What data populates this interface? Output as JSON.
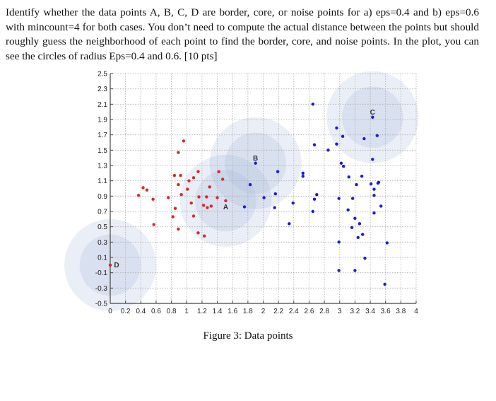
{
  "question": {
    "text": "Identify whether the data points A, B, C, D are border, core, or noise points for a) eps=0.4 and b) eps=0.6 with mincount=4 for both cases. You don’t need to compute the actual distance between the points but should roughly guess the neighborhood of each point to find the border, core, and noise points. In the plot, you can see the circles of radius Eps=0.4 and 0.6. [10 pts]"
  },
  "caption": "Figure 3: Data points",
  "chart_data": {
    "type": "scatter",
    "title": "",
    "xlabel": "",
    "ylabel": "",
    "xlim": [
      0,
      4
    ],
    "ylim": [
      -0.5,
      2.5
    ],
    "grid": true,
    "x_ticks": [
      "0",
      "0.2",
      "0.4",
      "0.6",
      "0.8",
      "1",
      "1.2",
      "1.4",
      "1.6",
      "1.8",
      "2",
      "2.2",
      "2.4",
      "2.6",
      "2.8",
      "3",
      "3.2",
      "3.4",
      "3.6",
      "3.8",
      "4"
    ],
    "y_ticks": [
      "2.5",
      "2.3",
      "2.1",
      "1.9",
      "1.7",
      "1.5",
      "1.3",
      "1.1",
      "0.9",
      "0.7",
      "0.5",
      "0.3",
      "0.1",
      "-0.1",
      "-0.3",
      "-0.5"
    ],
    "colors": {
      "red": "#d42a2a",
      "blue": "#1a1adc",
      "circle": "#9fb0d8"
    },
    "labeled_points": [
      {
        "label": "A",
        "x": 1.51,
        "y": 0.84
      },
      {
        "label": "B",
        "x": 1.9,
        "y": 1.33
      },
      {
        "label": "C",
        "x": 3.43,
        "y": 1.93
      },
      {
        "label": "D",
        "x": 0.0,
        "y": 0.0
      }
    ],
    "circle_radii": [
      0.4,
      0.6
    ],
    "series": [
      {
        "name": "red",
        "points": [
          [
            0.96,
            1.62
          ],
          [
            0.89,
            1.47
          ],
          [
            0.84,
            1.17
          ],
          [
            0.92,
            1.17
          ],
          [
            1.15,
            1.22
          ],
          [
            1.09,
            1.14
          ],
          [
            1.03,
            1.1
          ],
          [
            0.89,
            1.05
          ],
          [
            0.43,
            1.01
          ],
          [
            0.48,
            0.98
          ],
          [
            1.01,
            0.99
          ],
          [
            0.37,
            0.91
          ],
          [
            0.93,
            0.92
          ],
          [
            0.56,
            0.86
          ],
          [
            0.76,
            0.88
          ],
          [
            1.16,
            0.89
          ],
          [
            1.26,
            0.89
          ],
          [
            1.4,
            0.88
          ],
          [
            1.3,
            1.02
          ],
          [
            1.42,
            1.22
          ],
          [
            1.47,
            1.12
          ],
          [
            1.06,
            0.81
          ],
          [
            1.22,
            0.78
          ],
          [
            1.32,
            0.77
          ],
          [
            1.27,
            0.75
          ],
          [
            0.85,
            0.74
          ],
          [
            0.82,
            0.63
          ],
          [
            1.09,
            0.64
          ],
          [
            0.57,
            0.53
          ],
          [
            0.89,
            0.47
          ],
          [
            1.15,
            0.42
          ],
          [
            1.23,
            0.38
          ],
          [
            1.51,
            0.84
          ],
          [
            0.0,
            0.0
          ]
        ]
      },
      {
        "name": "blue",
        "points": [
          [
            2.65,
            2.1
          ],
          [
            2.96,
            1.79
          ],
          [
            2.67,
            1.57
          ],
          [
            2.96,
            1.58
          ],
          [
            2.85,
            1.5
          ],
          [
            1.9,
            1.33
          ],
          [
            2.19,
            1.22
          ],
          [
            2.52,
            1.2
          ],
          [
            2.52,
            1.16
          ],
          [
            1.83,
            1.05
          ],
          [
            2.16,
            0.93
          ],
          [
            2.7,
            0.92
          ],
          [
            2.01,
            0.88
          ],
          [
            2.67,
            0.86
          ],
          [
            2.39,
            0.81
          ],
          [
            2.15,
            0.75
          ],
          [
            1.755,
            0.76
          ],
          [
            2.65,
            0.7
          ],
          [
            2.34,
            0.54
          ],
          [
            3.43,
            1.93
          ],
          [
            3.04,
            1.68
          ],
          [
            3.32,
            1.65
          ],
          [
            3.49,
            1.69
          ],
          [
            3.43,
            1.38
          ],
          [
            3.02,
            1.33
          ],
          [
            3.05,
            1.29
          ],
          [
            3.12,
            1.15
          ],
          [
            3.29,
            1.16
          ],
          [
            3.22,
            1.05
          ],
          [
            3.41,
            1.06
          ],
          [
            3.51,
            1.08
          ],
          [
            3.5,
            1.07
          ],
          [
            3.45,
            0.99
          ],
          [
            3.45,
            0.91
          ],
          [
            2.99,
            0.87
          ],
          [
            3.17,
            0.87
          ],
          [
            3.54,
            0.77
          ],
          [
            3.11,
            0.72
          ],
          [
            3.45,
            0.68
          ],
          [
            3.2,
            0.61
          ],
          [
            3.26,
            0.54
          ],
          [
            3.16,
            0.49
          ],
          [
            3.3,
            0.4
          ],
          [
            3.24,
            0.36
          ],
          [
            2.99,
            0.3
          ],
          [
            3.62,
            0.29
          ],
          [
            3.33,
            0.09
          ],
          [
            2.99,
            -0.07
          ],
          [
            3.2,
            -0.07
          ],
          [
            3.59,
            -0.25
          ]
        ]
      }
    ]
  }
}
